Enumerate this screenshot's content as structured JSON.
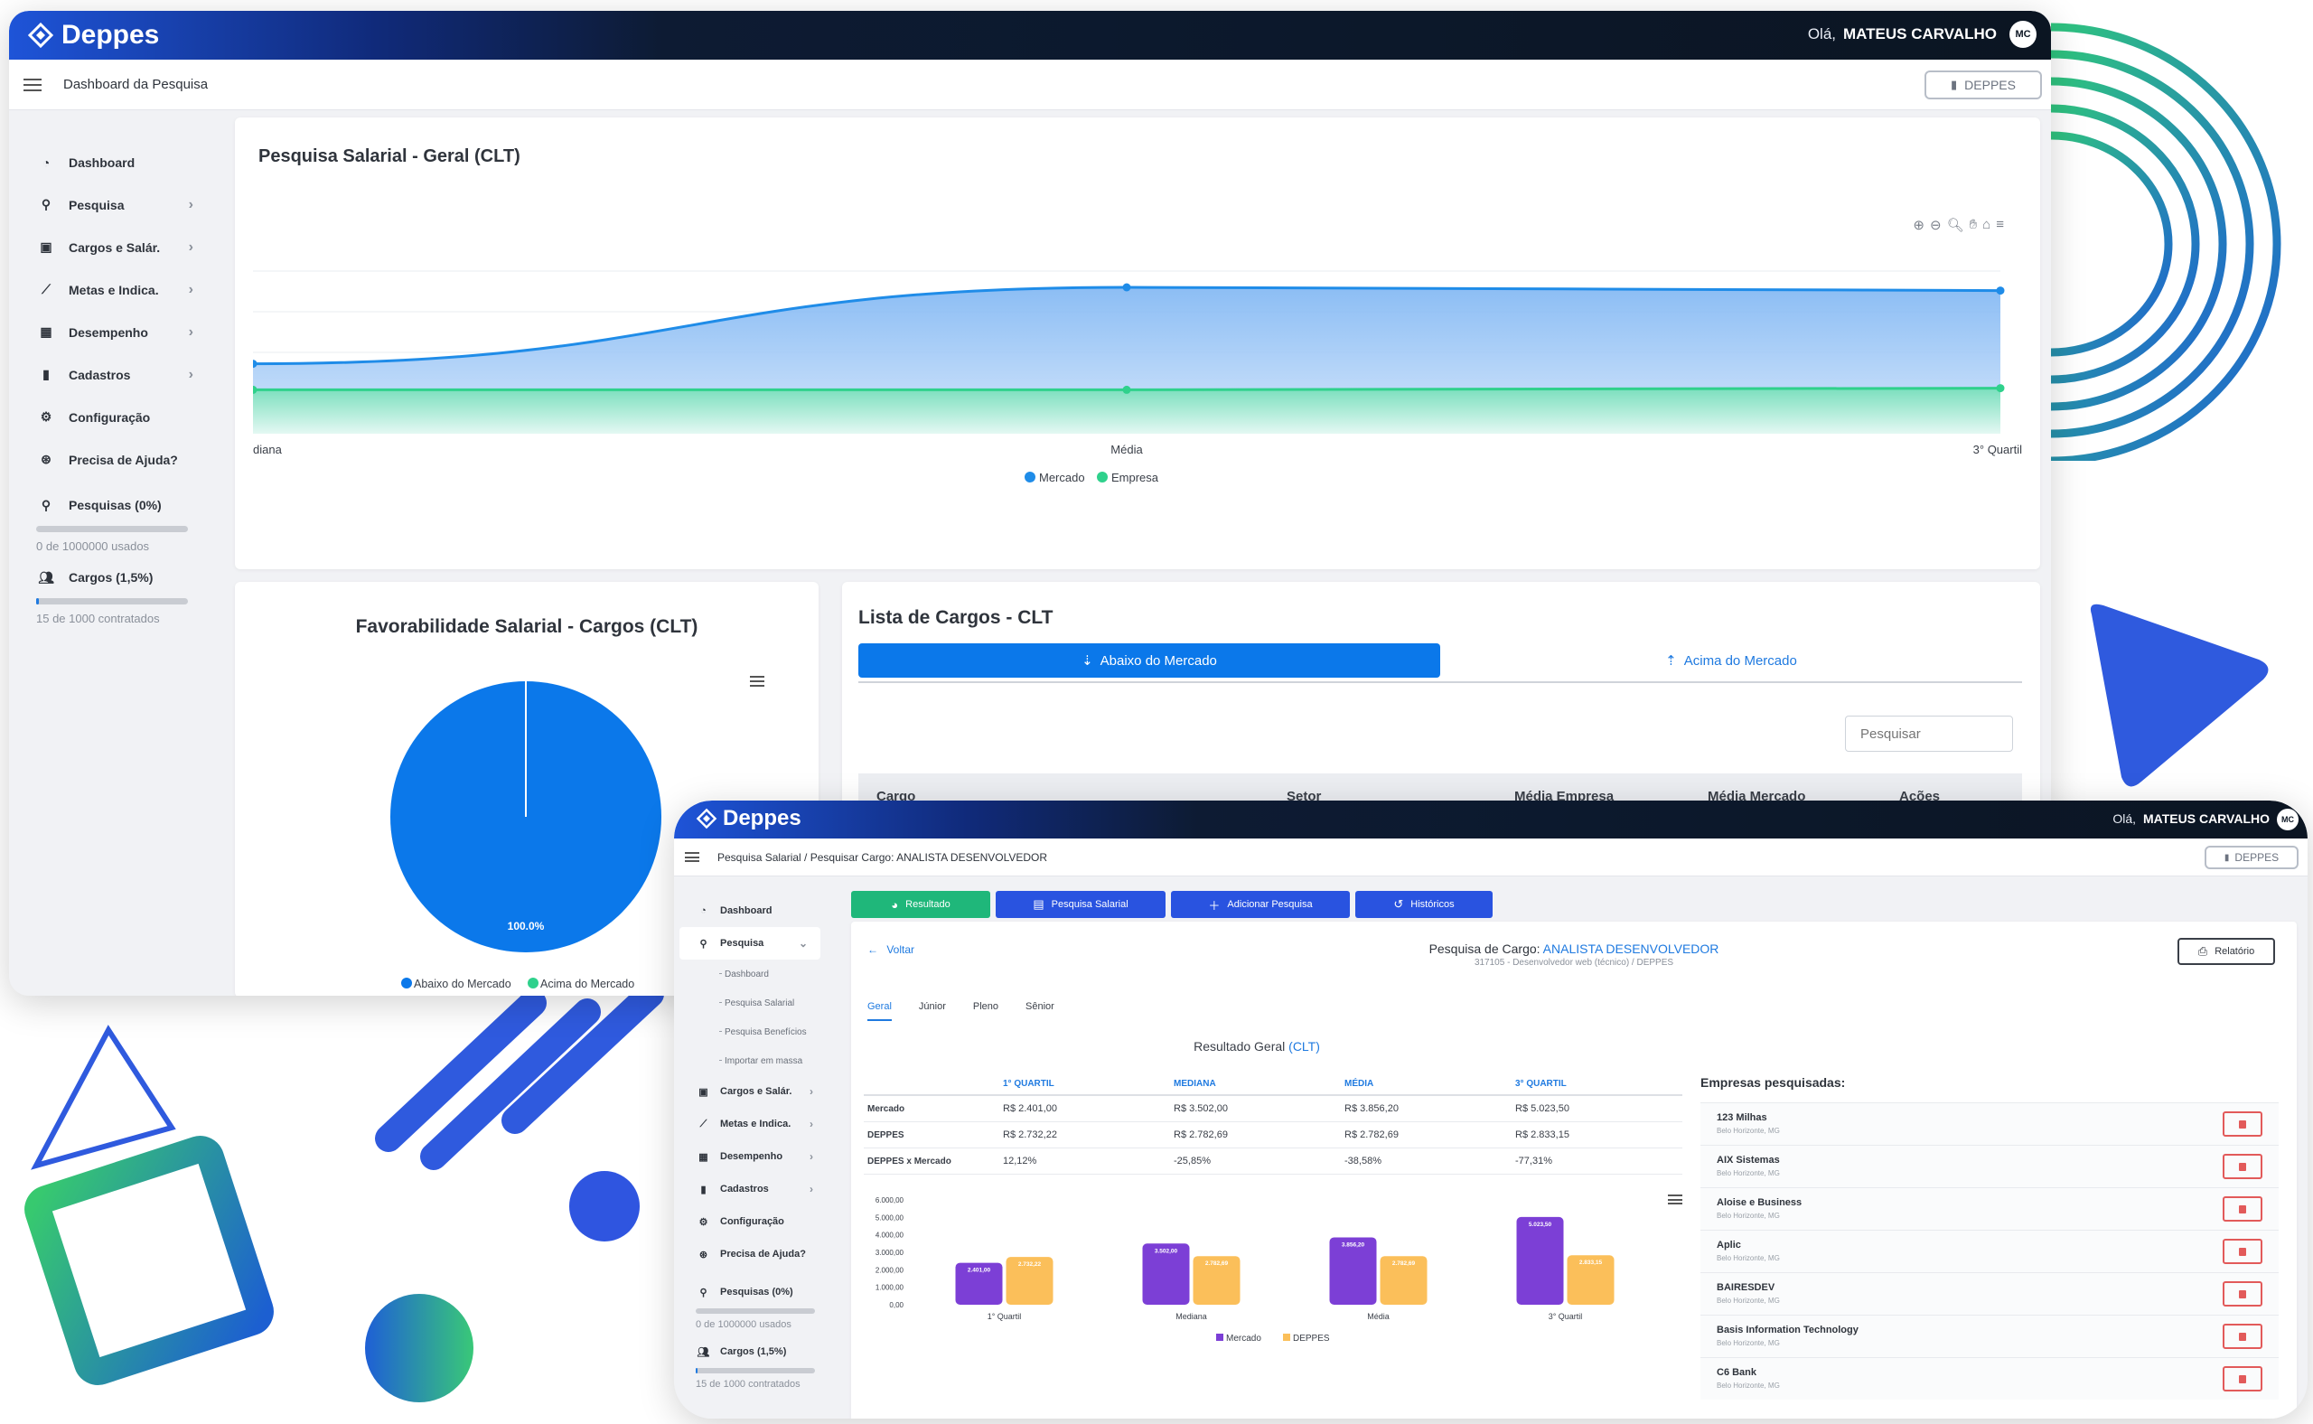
{
  "brand": {
    "name": "Deppes"
  },
  "user": {
    "greeting": "Olá,",
    "name": "MATEUS CARVALHO",
    "initials": "MC"
  },
  "company_button": "DEPPES",
  "colors": {
    "primary": "#0b78ea",
    "mercado": "#1f8ce8",
    "empresa": "#2fd18c",
    "purple": "#7c3fd6",
    "orange": "#fbbf5a",
    "green_tab": "#1fb77a",
    "blue_tab": "#2953e0"
  },
  "sidebar": {
    "items": [
      {
        "label": "Dashboard",
        "icon": "dashboard-icon"
      },
      {
        "label": "Pesquisa",
        "icon": "search-icon",
        "chevron": true
      },
      {
        "label": "Cargos e Salár.",
        "icon": "briefcase-icon",
        "chevron": true
      },
      {
        "label": "Metas e Indica.",
        "icon": "chart-line-icon",
        "chevron": true
      },
      {
        "label": "Desempenho",
        "icon": "performance-icon",
        "chevron": true
      },
      {
        "label": "Cadastros",
        "icon": "clipboard-icon",
        "chevron": true
      },
      {
        "label": "Configuração",
        "icon": "gear-icon"
      },
      {
        "label": "Precisa de Ajuda?",
        "icon": "help-icon"
      }
    ],
    "usage": [
      {
        "label": "Pesquisas (0%)",
        "detail": "0 de 1000000 usados",
        "fraction": 0
      },
      {
        "label": "Cargos (1,5%)",
        "detail": "15 de 1000 contratados",
        "fraction": 0.015
      }
    ]
  },
  "dashboard": {
    "breadcrumb": "Dashboard da Pesquisa",
    "line_card": {
      "title": "Pesquisa Salarial - Geral (CLT)"
    },
    "pie_card": {
      "title": "Favorabilidade Salarial - Cargos (CLT)"
    },
    "list_card": {
      "title": "Lista de Cargos - CLT",
      "tab_below": "Abaixo do Mercado",
      "tab_above": "Acima do Mercado",
      "search_placeholder": "Pesquisar",
      "columns": [
        "Cargo",
        "Setor",
        "Média Empresa",
        "Média Mercado",
        "Ações"
      ]
    }
  },
  "search_page": {
    "breadcrumb": "Pesquisa Salarial / Pesquisar Cargo: ANALISTA DESENVOLVEDOR",
    "subnav": [
      "Dashboard",
      "Pesquisa Salarial",
      "Pesquisa Benefícios",
      "Importar em massa"
    ],
    "tabs": [
      "Resultado",
      "Pesquisa Salarial",
      "Adicionar Pesquisa",
      "Históricos"
    ],
    "back": "Voltar",
    "heading_prefix": "Pesquisa de Cargo:",
    "heading_role": "ANALISTA DESENVOLVEDOR",
    "heading_sub": "317105 - Desenvolvedor web (técnico) / DEPPES",
    "report_button": "Relatório",
    "level_tabs": [
      "Geral",
      "Júnior",
      "Pleno",
      "Sênior"
    ],
    "result_title": "Resultado Geral",
    "result_title_tag": "(CLT)",
    "table": {
      "columns": [
        "",
        "1° QUARTIL",
        "MEDIANA",
        "MÉDIA",
        "3° QUARTIL"
      ],
      "rows": [
        [
          "Mercado",
          "R$ 2.401,00",
          "R$ 3.502,00",
          "R$ 3.856,20",
          "R$ 5.023,50"
        ],
        [
          "DEPPES",
          "R$ 2.732,22",
          "R$ 2.782,69",
          "R$ 2.782,69",
          "R$ 2.833,15"
        ],
        [
          "DEPPES x Mercado",
          "12,12%",
          "-25,85%",
          "-38,58%",
          "-77,31%"
        ]
      ]
    },
    "companies_title": "Empresas pesquisadas:",
    "companies": [
      {
        "name": "123 Milhas",
        "location": "Belo Horizonte, MG"
      },
      {
        "name": "AIX Sistemas",
        "location": "Belo Horizonte, MG"
      },
      {
        "name": "Aloise e Business",
        "location": "Belo Horizonte, MG"
      },
      {
        "name": "Aplic",
        "location": "Belo Horizonte, MG"
      },
      {
        "name": "BAIRESDEV",
        "location": "Belo Horizonte, MG"
      },
      {
        "name": "Basis Information Technology",
        "location": "Belo Horizonte, MG"
      },
      {
        "name": "C6 Bank",
        "location": "Belo Horizonte, MG"
      }
    ]
  },
  "chart_data": [
    {
      "type": "area",
      "title": "Pesquisa Salarial - Geral (CLT)",
      "categories": [
        "Mediana",
        "Média",
        "3° Quartil"
      ],
      "series": [
        {
          "name": "Mercado",
          "values": [
            0.43,
            0.9,
            0.88
          ]
        },
        {
          "name": "Empresa",
          "values": [
            0.27,
            0.27,
            0.28
          ]
        }
      ],
      "ylim": [
        0,
        1
      ],
      "grid": true,
      "legend": "bottom"
    },
    {
      "type": "pie",
      "title": "Favorabilidade Salarial - Cargos (CLT)",
      "labels": [
        "Abaixo do Mercado",
        "Acima do Mercado"
      ],
      "values": [
        100,
        0
      ],
      "data_labels": [
        "100.0%"
      ],
      "legend": "bottom"
    },
    {
      "type": "bar",
      "title": "Resultado Geral (CLT)",
      "categories": [
        "1° Quartil",
        "Mediana",
        "Média",
        "3° Quartil"
      ],
      "series": [
        {
          "name": "Mercado",
          "values": [
            2401.0,
            3502.0,
            3856.2,
            5023.5
          ],
          "labels": [
            "2.401,00",
            "3.502,00",
            "3.856,20",
            "5.023,50"
          ]
        },
        {
          "name": "DEPPES",
          "values": [
            2732.22,
            2782.69,
            2782.69,
            2833.15
          ],
          "labels": [
            "2.732,22",
            "2.782,69",
            "2.782,69",
            "2.833,15"
          ]
        }
      ],
      "yticks": [
        "0,00",
        "1.000,00",
        "2.000,00",
        "3.000,00",
        "4.000,00",
        "5.000,00",
        "6.000,00"
      ],
      "ylim": [
        0,
        6000
      ],
      "legend": "bottom"
    }
  ]
}
